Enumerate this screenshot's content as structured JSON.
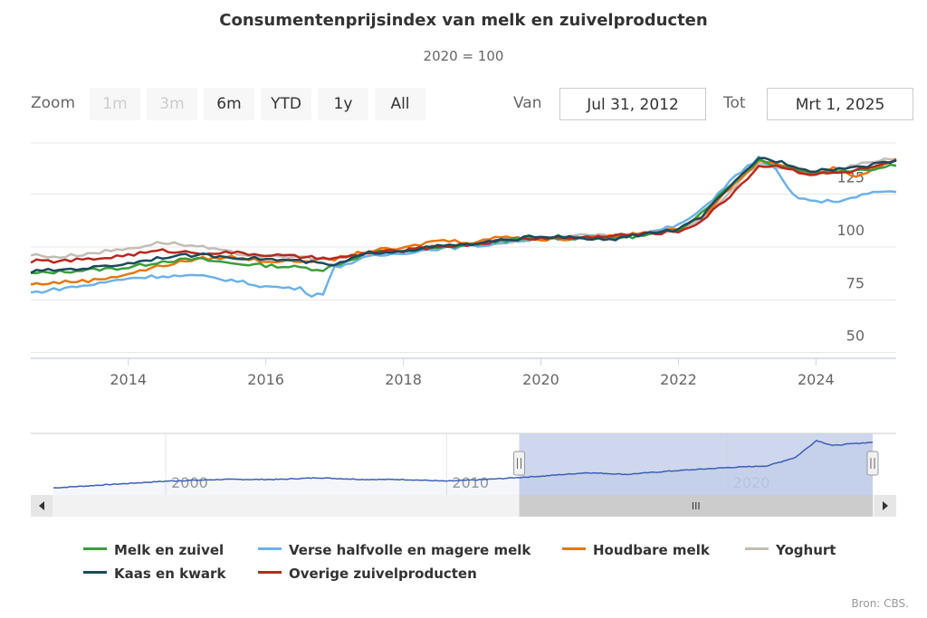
{
  "header": {
    "title": "Consumentenprijsindex van melk en zuivelproducten",
    "subtitle": "2020 = 100"
  },
  "range_selector": {
    "zoom_label": "Zoom",
    "buttons": [
      {
        "label": "1m",
        "enabled": false
      },
      {
        "label": "3m",
        "enabled": false
      },
      {
        "label": "6m",
        "enabled": true
      },
      {
        "label": "YTD",
        "enabled": true
      },
      {
        "label": "1y",
        "enabled": true
      },
      {
        "label": "All",
        "enabled": true
      }
    ],
    "from_label": "Van",
    "from_value": "Jul 31, 2012",
    "to_label": "Tot",
    "to_value": "Mrt 1, 2025"
  },
  "navigator": {
    "tick_labels": [
      "2000",
      "2010",
      "2020"
    ],
    "scrollbar_grip": "III"
  },
  "credits": "Bron: CBS.",
  "colors": {
    "melk": "#3a9e3a",
    "verse": "#6cb2e8",
    "houdbare": "#e8760e",
    "yoghurt": "#c4bcb4",
    "kaas": "#1a4a5e",
    "overige": "#b8281e",
    "navigator_line": "#3d5fb5",
    "navigator_mask": "#c5d0ea",
    "grid": "#e6e6e6"
  },
  "chart_data": {
    "type": "line",
    "title": "Consumentenprijsindex van melk en zuivelproducten",
    "subtitle": "2020 = 100",
    "x_range": [
      "2012-07-31",
      "2025-03-01"
    ],
    "x_ticks": [
      "2014",
      "2016",
      "2018",
      "2020",
      "2022",
      "2024"
    ],
    "y_ticks": [
      50,
      75,
      100,
      125
    ],
    "ylim": [
      43,
      145
    ],
    "grid": true,
    "legend": "bottom",
    "series": [
      {
        "name": "Melk en zuivel",
        "color_key": "melk",
        "points": [
          [
            "2012-08",
            83
          ],
          [
            "2013-01",
            84
          ],
          [
            "2013-07",
            85
          ],
          [
            "2014-01",
            86
          ],
          [
            "2014-07",
            89
          ],
          [
            "2015-01",
            90
          ],
          [
            "2015-07",
            88
          ],
          [
            "2016-01",
            87
          ],
          [
            "2016-07",
            86
          ],
          [
            "2016-11",
            85
          ],
          [
            "2017-03",
            89
          ],
          [
            "2017-07",
            93
          ],
          [
            "2018-01",
            94
          ],
          [
            "2018-07",
            95
          ],
          [
            "2019-01",
            97
          ],
          [
            "2019-07",
            99
          ],
          [
            "2020-01",
            100
          ],
          [
            "2020-07",
            100
          ],
          [
            "2021-01",
            100
          ],
          [
            "2021-07",
            101
          ],
          [
            "2022-01",
            104
          ],
          [
            "2022-05",
            112
          ],
          [
            "2022-10",
            125
          ],
          [
            "2023-03",
            137
          ],
          [
            "2023-07",
            134
          ],
          [
            "2023-12",
            131
          ],
          [
            "2024-06",
            132
          ],
          [
            "2024-12",
            133
          ],
          [
            "2025-03",
            135
          ]
        ]
      },
      {
        "name": "Verse halfvolle en magere melk",
        "color_key": "verse",
        "points": [
          [
            "2012-08",
            74
          ],
          [
            "2013-01",
            76
          ],
          [
            "2013-07",
            78
          ],
          [
            "2014-01",
            81
          ],
          [
            "2014-07",
            82
          ],
          [
            "2015-01",
            82
          ],
          [
            "2015-07",
            80
          ],
          [
            "2016-01",
            77
          ],
          [
            "2016-07",
            76
          ],
          [
            "2016-09",
            73
          ],
          [
            "2016-11",
            74
          ],
          [
            "2017-01",
            86
          ],
          [
            "2017-07",
            91
          ],
          [
            "2018-01",
            93
          ],
          [
            "2018-07",
            95
          ],
          [
            "2019-01",
            96
          ],
          [
            "2019-07",
            98
          ],
          [
            "2020-01",
            100
          ],
          [
            "2020-07",
            100
          ],
          [
            "2021-01",
            101
          ],
          [
            "2021-07",
            102
          ],
          [
            "2022-01",
            106
          ],
          [
            "2022-05",
            113
          ],
          [
            "2022-10",
            127
          ],
          [
            "2023-03",
            138
          ],
          [
            "2023-06",
            132
          ],
          [
            "2023-09",
            120
          ],
          [
            "2024-01",
            117
          ],
          [
            "2024-06",
            118
          ],
          [
            "2024-12",
            122
          ],
          [
            "2025-03",
            122
          ]
        ]
      },
      {
        "name": "Houdbare melk",
        "color_key": "houdbare",
        "points": [
          [
            "2012-08",
            78
          ],
          [
            "2013-01",
            79
          ],
          [
            "2013-07",
            80
          ],
          [
            "2014-01",
            83
          ],
          [
            "2014-07",
            87
          ],
          [
            "2015-01",
            90
          ],
          [
            "2015-07",
            91
          ],
          [
            "2016-01",
            89
          ],
          [
            "2016-07",
            89
          ],
          [
            "2017-01",
            90
          ],
          [
            "2017-07",
            94
          ],
          [
            "2018-01",
            95
          ],
          [
            "2018-07",
            99
          ],
          [
            "2019-01",
            98
          ],
          [
            "2019-07",
            101
          ],
          [
            "2020-01",
            99
          ],
          [
            "2020-07",
            100
          ],
          [
            "2021-01",
            101
          ],
          [
            "2021-07",
            102
          ],
          [
            "2022-01",
            104
          ],
          [
            "2022-05",
            110
          ],
          [
            "2022-10",
            124
          ],
          [
            "2023-03",
            136
          ],
          [
            "2023-07",
            135
          ],
          [
            "2023-12",
            130
          ],
          [
            "2024-04",
            133
          ],
          [
            "2024-08",
            129
          ],
          [
            "2024-12",
            134
          ],
          [
            "2025-03",
            137
          ]
        ]
      },
      {
        "name": "Yoghurt",
        "color_key": "yoghurt",
        "points": [
          [
            "2012-08",
            92
          ],
          [
            "2013-01",
            91
          ],
          [
            "2013-07",
            93
          ],
          [
            "2014-01",
            95
          ],
          [
            "2014-07",
            98
          ],
          [
            "2015-01",
            96
          ],
          [
            "2015-07",
            93
          ],
          [
            "2016-01",
            91
          ],
          [
            "2016-07",
            91
          ],
          [
            "2017-01",
            90
          ],
          [
            "2017-07",
            93
          ],
          [
            "2018-01",
            94
          ],
          [
            "2018-07",
            96
          ],
          [
            "2019-01",
            97
          ],
          [
            "2019-07",
            98
          ],
          [
            "2020-01",
            100
          ],
          [
            "2020-07",
            101
          ],
          [
            "2021-01",
            101
          ],
          [
            "2021-07",
            102
          ],
          [
            "2022-01",
            104
          ],
          [
            "2022-05",
            109
          ],
          [
            "2022-10",
            122
          ],
          [
            "2023-03",
            136
          ],
          [
            "2023-07",
            133
          ],
          [
            "2023-12",
            130
          ],
          [
            "2024-06",
            133
          ],
          [
            "2024-12",
            137
          ],
          [
            "2025-03",
            138
          ]
        ]
      },
      {
        "name": "Kaas en kwark",
        "color_key": "kaas",
        "points": [
          [
            "2012-08",
            84
          ],
          [
            "2013-01",
            85
          ],
          [
            "2013-07",
            86
          ],
          [
            "2014-01",
            88
          ],
          [
            "2014-07",
            91
          ],
          [
            "2015-01",
            92
          ],
          [
            "2015-07",
            91
          ],
          [
            "2016-01",
            90
          ],
          [
            "2016-07",
            89
          ],
          [
            "2017-01",
            87
          ],
          [
            "2017-07",
            93
          ],
          [
            "2018-01",
            94
          ],
          [
            "2018-07",
            96
          ],
          [
            "2019-01",
            97
          ],
          [
            "2019-07",
            99
          ],
          [
            "2020-01",
            101
          ],
          [
            "2020-07",
            100
          ],
          [
            "2021-01",
            99
          ],
          [
            "2021-07",
            102
          ],
          [
            "2022-01",
            104
          ],
          [
            "2022-05",
            110
          ],
          [
            "2022-10",
            124
          ],
          [
            "2023-03",
            138
          ],
          [
            "2023-07",
            136
          ],
          [
            "2023-12",
            132
          ],
          [
            "2024-06",
            133
          ],
          [
            "2024-12",
            135
          ],
          [
            "2025-03",
            137
          ]
        ]
      },
      {
        "name": "Overige zuivelproducten",
        "color_key": "overige",
        "points": [
          [
            "2012-08",
            89
          ],
          [
            "2013-01",
            89
          ],
          [
            "2013-07",
            90
          ],
          [
            "2014-01",
            92
          ],
          [
            "2014-07",
            94
          ],
          [
            "2015-01",
            93
          ],
          [
            "2015-07",
            93
          ],
          [
            "2016-01",
            92
          ],
          [
            "2016-07",
            91
          ],
          [
            "2017-01",
            90
          ],
          [
            "2017-07",
            93
          ],
          [
            "2018-01",
            94
          ],
          [
            "2018-07",
            96
          ],
          [
            "2019-01",
            97
          ],
          [
            "2019-07",
            99
          ],
          [
            "2020-01",
            100
          ],
          [
            "2020-07",
            100
          ],
          [
            "2021-01",
            101
          ],
          [
            "2021-07",
            102
          ],
          [
            "2022-01",
            103
          ],
          [
            "2022-05",
            108
          ],
          [
            "2022-10",
            120
          ],
          [
            "2023-03",
            134
          ],
          [
            "2023-07",
            134
          ],
          [
            "2023-12",
            130
          ],
          [
            "2024-06",
            131
          ],
          [
            "2024-12",
            134
          ],
          [
            "2025-03",
            136
          ]
        ]
      }
    ],
    "navigator_series": {
      "x_range": [
        "1996-01",
        "2025-03"
      ],
      "mask_range": [
        "2012-07-31",
        "2025-03-01"
      ],
      "points": [
        [
          "1996-01",
          72
        ],
        [
          "1998-01",
          74
        ],
        [
          "2000-01",
          76
        ],
        [
          "2002-01",
          77
        ],
        [
          "2004-01",
          77
        ],
        [
          "2005-06",
          78
        ],
        [
          "2007-01",
          77
        ],
        [
          "2008-06",
          77
        ],
        [
          "2010-01",
          76
        ],
        [
          "2011-06",
          77
        ],
        [
          "2012-06",
          78
        ],
        [
          "2013-06",
          79
        ],
        [
          "2015-01",
          81
        ],
        [
          "2016-06",
          80
        ],
        [
          "2018-01",
          82
        ],
        [
          "2020-01",
          84
        ],
        [
          "2021-06",
          85
        ],
        [
          "2022-06",
          90
        ],
        [
          "2023-03",
          100
        ],
        [
          "2023-10",
          97
        ],
        [
          "2024-06",
          98
        ],
        [
          "2025-03",
          99
        ]
      ]
    }
  }
}
